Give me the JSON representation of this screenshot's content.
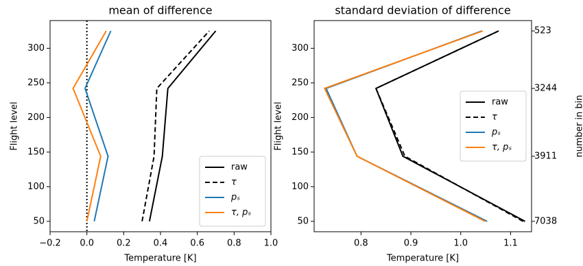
{
  "chart_data": [
    {
      "type": "line",
      "title": "mean of difference",
      "xlabel": "Temperature [K]",
      "ylabel": "Flight level",
      "y": [
        50,
        144,
        242,
        325
      ],
      "series": [
        {
          "name": "raw",
          "color": "#000000",
          "dash": false,
          "values": [
            0.34,
            0.41,
            0.44,
            0.7
          ]
        },
        {
          "name": "τ",
          "color": "#000000",
          "dash": true,
          "values": [
            0.3,
            0.365,
            0.38,
            0.665
          ]
        },
        {
          "name": "pₛ",
          "color": "#1f77b4",
          "dash": false,
          "values": [
            0.04,
            0.115,
            -0.01,
            0.13
          ]
        },
        {
          "name": "τ, pₛ",
          "color": "#ff7f0e",
          "dash": false,
          "values": [
            0.0,
            0.075,
            -0.075,
            0.105
          ]
        }
      ],
      "reference_x": 0,
      "xlim": [
        -0.2,
        1.0
      ],
      "xticks": [
        {
          "value": -0.2,
          "label": "−0.2"
        },
        {
          "value": 0,
          "label": "0.0"
        },
        0.2,
        0.4,
        0.6,
        0.8,
        {
          "value": 1,
          "label": "1.0"
        }
      ],
      "ylim": [
        35,
        340
      ],
      "yticks": [
        50,
        100,
        150,
        200,
        250,
        300
      ],
      "legend": "lower right"
    },
    {
      "type": "line",
      "title": "standard deviation of difference",
      "xlabel": "Temperature [K]",
      "ylabel": "Flight level",
      "y2label": "number in bin",
      "y": [
        50,
        144,
        242,
        325
      ],
      "bin_counts": [
        7038,
        3911,
        3244,
        523
      ],
      "series": [
        {
          "name": "raw",
          "color": "#000000",
          "dash": false,
          "values": [
            1.129,
            0.884,
            0.83,
            1.076
          ]
        },
        {
          "name": "τ",
          "color": "#000000",
          "dash": true,
          "values": [
            1.125,
            0.888,
            0.83,
            1.076
          ]
        },
        {
          "name": "pₛ",
          "color": "#1f77b4",
          "dash": false,
          "values": [
            1.053,
            0.792,
            0.73,
            1.042
          ]
        },
        {
          "name": "τ, pₛ",
          "color": "#ff7f0e",
          "dash": false,
          "values": [
            1.049,
            0.792,
            0.727,
            1.044
          ]
        }
      ],
      "xlim": [
        0.706,
        1.142
      ],
      "xticks": [
        0.8,
        0.9,
        {
          "value": 1,
          "label": "1.0"
        },
        1.1
      ],
      "ylim": [
        35,
        340
      ],
      "yticks": [
        50,
        100,
        150,
        200,
        250,
        300
      ],
      "legend": "center right"
    }
  ]
}
